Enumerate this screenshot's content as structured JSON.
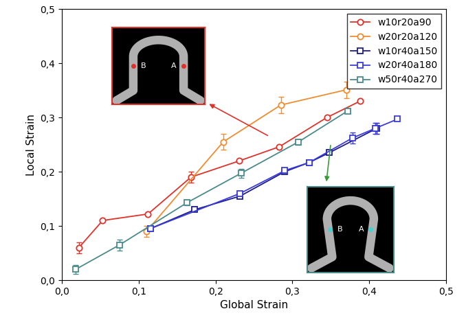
{
  "chart_data": {
    "type": "line",
    "x_label": "Global Strain",
    "y_label": "Local Strain",
    "xlim": [
      0,
      0.5
    ],
    "ylim": [
      0,
      0.5
    ],
    "xticks": [
      {
        "value": 0,
        "label": "0,0"
      },
      {
        "value": 0.1,
        "label": "0,1"
      },
      {
        "value": 0.2,
        "label": "0,2"
      },
      {
        "value": 0.3,
        "label": "0,3"
      },
      {
        "value": 0.4,
        "label": "0,4"
      },
      {
        "value": 0.5,
        "label": "0,5"
      }
    ],
    "yticks": [
      {
        "value": 0,
        "label": "0,0"
      },
      {
        "value": 0.1,
        "label": "0,1"
      },
      {
        "value": 0.2,
        "label": "0,2"
      },
      {
        "value": 0.3,
        "label": "0,3"
      },
      {
        "value": 0.4,
        "label": "0,4"
      },
      {
        "value": 0.5,
        "label": "0,5"
      }
    ],
    "legend": "upper right",
    "grid": false,
    "inset_labels": [
      "B",
      "A"
    ],
    "series": [
      {
        "name": "w10r20a90",
        "color": "#e0312b",
        "marker": "circle",
        "x": [
          0.022,
          0.053,
          0.112,
          0.168,
          0.231,
          0.283,
          0.345,
          0.388
        ],
        "values": [
          0.06,
          0.11,
          0.122,
          0.19,
          0.22,
          0.246,
          0.3,
          0.33
        ],
        "errors": [
          0.01,
          null,
          null,
          0.01,
          null,
          null,
          null,
          null
        ]
      },
      {
        "name": "w20r20a120",
        "color": "#f08c30",
        "marker": "circle",
        "x": [
          0.11,
          0.21,
          0.285,
          0.37
        ],
        "values": [
          0.09,
          0.255,
          0.323,
          0.351
        ],
        "errors": [
          0.01,
          0.015,
          0.015,
          0.015
        ]
      },
      {
        "name": "w10r40a150",
        "color": "#1c1c8c",
        "marker": "square",
        "x": [
          0.115,
          0.173,
          0.232,
          0.29,
          0.322,
          0.348,
          0.41
        ],
        "values": [
          0.095,
          0.13,
          0.155,
          0.2,
          0.217,
          0.235,
          0.28
        ],
        "errors": [
          null,
          null,
          null,
          null,
          null,
          null,
          0.01
        ]
      },
      {
        "name": "w20r40a180",
        "color": "#3b3bdc",
        "marker": "square",
        "x": [
          0.115,
          0.232,
          0.29,
          0.322,
          0.378,
          0.408,
          0.437
        ],
        "values": [
          0.095,
          0.16,
          0.202,
          0.217,
          0.262,
          0.28,
          0.297
        ],
        "errors": [
          null,
          null,
          null,
          null,
          0.01,
          0.01,
          null
        ]
      },
      {
        "name": "w50r40a270",
        "color": "#4a8a8a",
        "marker": "square",
        "x": [
          0.018,
          0.075,
          0.163,
          0.233,
          0.308,
          0.372
        ],
        "values": [
          0.02,
          0.065,
          0.143,
          0.197,
          0.255,
          0.312
        ],
        "errors": [
          0.008,
          0.01,
          0.005,
          0.008,
          0.005,
          null
        ]
      }
    ]
  }
}
